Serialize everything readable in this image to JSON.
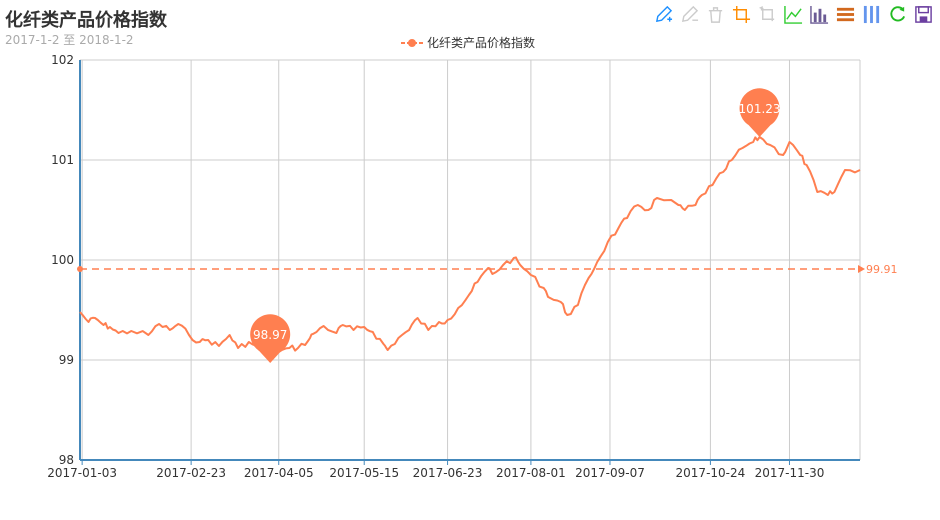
{
  "title": "化纤类产品价格指数",
  "subtitle": "2017-1-2 至 2018-1-2",
  "legend": {
    "label": "化纤类产品价格指数",
    "color": "#ff7f50"
  },
  "toolbox": [
    {
      "name": "mark-icon",
      "color": "#1e90ff"
    },
    {
      "name": "mark-undo-icon",
      "color": "#cccccc"
    },
    {
      "name": "mark-clear-icon",
      "color": "#cccccc"
    },
    {
      "name": "data-zoom-icon",
      "color": "#ff8c00"
    },
    {
      "name": "data-zoom-reset-icon",
      "color": "#cccccc"
    },
    {
      "name": "line-chart-icon",
      "color": "#32cd32"
    },
    {
      "name": "bar-chart-icon",
      "color": "#6b5b95"
    },
    {
      "name": "stack-icon",
      "color": "#d2691e"
    },
    {
      "name": "tiled-icon",
      "color": "#6495ed"
    },
    {
      "name": "restore-icon",
      "color": "#22bb22"
    },
    {
      "name": "save-image-icon",
      "color": "#6b3fa0"
    }
  ],
  "chart_data": {
    "type": "line",
    "title": "化纤类产品价格指数",
    "subtitle": "2017-1-2 至 2018-1-2",
    "ylim": [
      98,
      102
    ],
    "yticks": [
      98,
      99,
      100,
      101,
      102
    ],
    "xticks": [
      "2017-01-03",
      "2017-02-23",
      "2017-04-05",
      "2017-05-15",
      "2017-06-23",
      "2017-08-01",
      "2017-09-07",
      "2017-10-24",
      "2017-11-30"
    ],
    "x_range": [
      "2017-01-02",
      "2018-01-02"
    ],
    "grid": true,
    "legend_position": "top-center",
    "series": [
      {
        "name": "化纤类产品价格指数",
        "color": "#ff7f50",
        "points": [
          [
            "2017-01-02",
            99.48
          ],
          [
            "2017-01-06",
            99.38
          ],
          [
            "2017-01-09",
            99.42
          ],
          [
            "2017-01-13",
            99.35
          ],
          [
            "2017-01-16",
            99.33
          ],
          [
            "2017-01-20",
            99.27
          ],
          [
            "2017-01-26",
            99.29
          ],
          [
            "2017-02-03",
            99.25
          ],
          [
            "2017-02-08",
            99.36
          ],
          [
            "2017-02-13",
            99.3
          ],
          [
            "2017-02-17",
            99.36
          ],
          [
            "2017-02-22",
            99.25
          ],
          [
            "2017-02-27",
            99.18
          ],
          [
            "2017-03-03",
            99.2
          ],
          [
            "2017-03-08",
            99.14
          ],
          [
            "2017-03-13",
            99.25
          ],
          [
            "2017-03-17",
            99.12
          ],
          [
            "2017-03-22",
            99.18
          ],
          [
            "2017-03-27",
            99.1
          ],
          [
            "2017-03-31",
            99.14
          ],
          [
            "2017-04-05",
            99.08
          ],
          [
            "2017-04-10",
            99.12
          ],
          [
            "2017-04-14",
            99.12
          ],
          [
            "2017-04-19",
            99.2
          ],
          [
            "2017-04-21",
            99.26
          ],
          [
            "2017-04-26",
            99.34
          ],
          [
            "2017-05-02",
            99.27
          ],
          [
            "2017-05-05",
            99.35
          ],
          [
            "2017-05-10",
            99.3
          ],
          [
            "2017-05-15",
            99.33
          ],
          [
            "2017-05-19",
            99.28
          ],
          [
            "2017-05-24",
            99.16
          ],
          [
            "2017-05-26",
            99.1
          ],
          [
            "2017-05-31",
            99.22
          ],
          [
            "2017-06-05",
            99.3
          ],
          [
            "2017-06-09",
            99.42
          ],
          [
            "2017-06-14",
            99.3
          ],
          [
            "2017-06-19",
            99.38
          ],
          [
            "2017-06-23",
            99.4
          ],
          [
            "2017-06-28",
            99.52
          ],
          [
            "2017-07-03",
            99.65
          ],
          [
            "2017-07-07",
            99.78
          ],
          [
            "2017-07-12",
            99.92
          ],
          [
            "2017-07-14",
            99.86
          ],
          [
            "2017-07-19",
            99.95
          ],
          [
            "2017-07-24",
            100.02
          ],
          [
            "2017-07-27",
            99.95
          ],
          [
            "2017-08-01",
            99.85
          ],
          [
            "2017-08-07",
            99.72
          ],
          [
            "2017-08-10",
            99.62
          ],
          [
            "2017-08-15",
            99.58
          ],
          [
            "2017-08-18",
            99.45
          ],
          [
            "2017-08-23",
            99.55
          ],
          [
            "2017-08-28",
            99.82
          ],
          [
            "2017-09-01",
            99.98
          ],
          [
            "2017-09-06",
            100.18
          ],
          [
            "2017-09-11",
            100.32
          ],
          [
            "2017-09-15",
            100.42
          ],
          [
            "2017-09-20",
            100.55
          ],
          [
            "2017-09-25",
            100.5
          ],
          [
            "2017-09-29",
            100.62
          ],
          [
            "2017-10-09",
            100.55
          ],
          [
            "2017-10-12",
            100.5
          ],
          [
            "2017-10-17",
            100.55
          ],
          [
            "2017-10-20",
            100.65
          ],
          [
            "2017-10-25",
            100.75
          ],
          [
            "2017-10-30",
            100.88
          ],
          [
            "2017-11-03",
            101.0
          ],
          [
            "2017-11-08",
            101.12
          ],
          [
            "2017-11-13",
            101.18
          ],
          [
            "2017-11-16",
            101.23
          ],
          [
            "2017-11-21",
            101.15
          ],
          [
            "2017-11-27",
            101.05
          ],
          [
            "2017-11-30",
            101.18
          ],
          [
            "2017-12-05",
            101.05
          ],
          [
            "2017-12-08",
            100.95
          ],
          [
            "2017-12-13",
            100.68
          ],
          [
            "2017-12-18",
            100.65
          ],
          [
            "2017-12-21",
            100.68
          ],
          [
            "2017-12-26",
            100.9
          ],
          [
            "2018-01-02",
            100.9
          ]
        ]
      }
    ],
    "mark_points": [
      {
        "label": "98.97",
        "date": "2017-04-01",
        "value": 98.97
      },
      {
        "label": "101.23",
        "date": "2017-11-16",
        "value": 101.23
      }
    ],
    "mark_line": {
      "label": "99.91",
      "value": 99.91
    }
  }
}
